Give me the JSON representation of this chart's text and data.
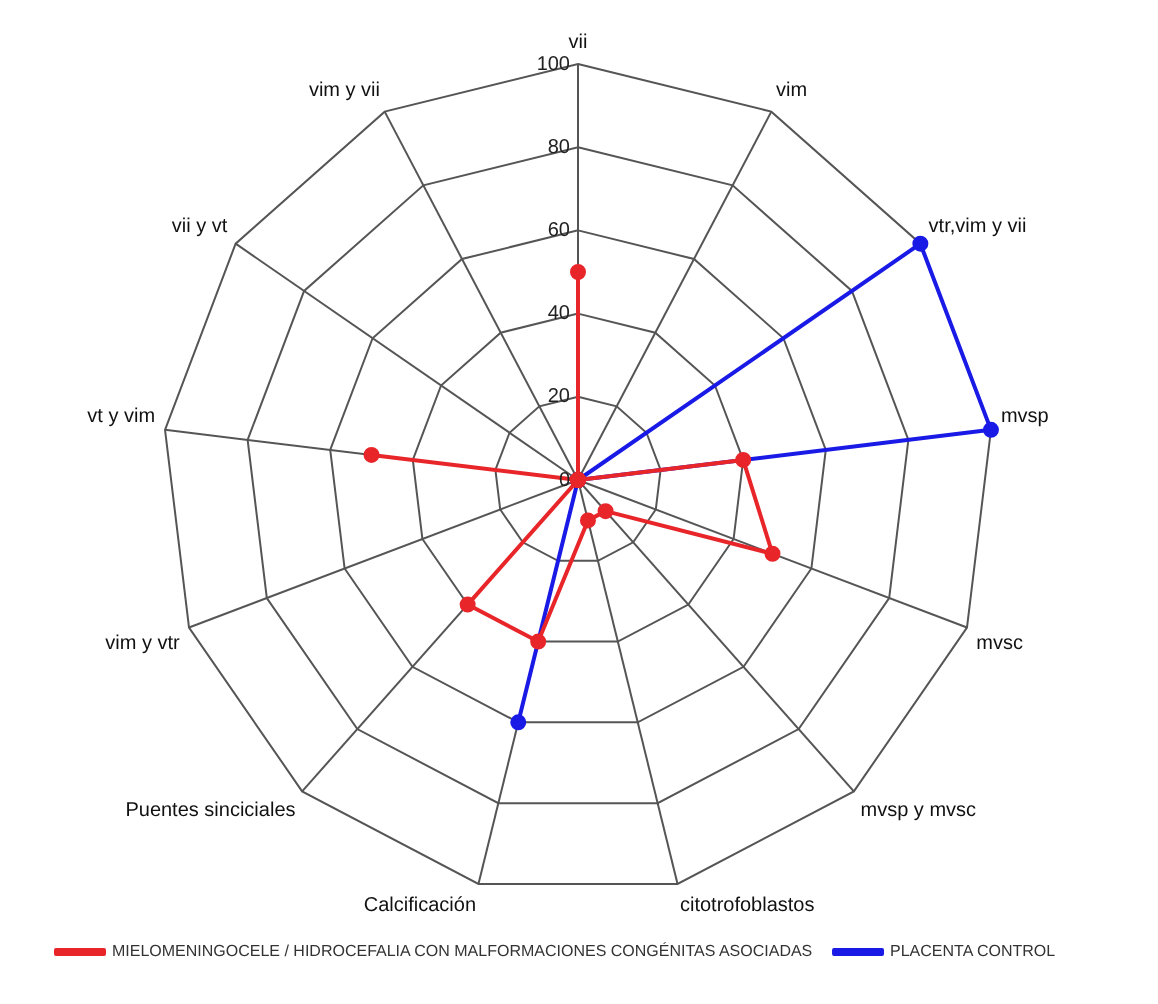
{
  "chart_data": {
    "type": "radar",
    "categories": [
      "vii",
      "vim",
      "vtr,vim y vii",
      "mvsp",
      "mvsc",
      "mvsp y mvsc",
      "citotrofoblastos",
      "Calcificación",
      "Puentes sinciciales",
      "vim y vtr",
      "vt y vim",
      "vii y vt",
      "vim y vii"
    ],
    "series": [
      {
        "name": "MIELOMENINGOCELE / HIDROCEFALIA CON MALFORMACIONES CONGÉNITAS ASOCIADAS",
        "color": "#e8262a",
        "values": [
          50,
          0,
          0,
          40,
          50,
          10,
          10,
          40,
          40,
          0,
          50,
          0,
          0
        ]
      },
      {
        "name": "PLACENTA CONTROL",
        "color": "#1a1ae6",
        "values": [
          0,
          0,
          100,
          100,
          0,
          0,
          0,
          60,
          0,
          0,
          0,
          0,
          0
        ]
      }
    ],
    "ylim": [
      0,
      100
    ],
    "yticks": [
      0,
      20,
      40,
      60,
      80,
      100
    ],
    "grid": true,
    "legend": "bottom",
    "marker": "circle"
  }
}
